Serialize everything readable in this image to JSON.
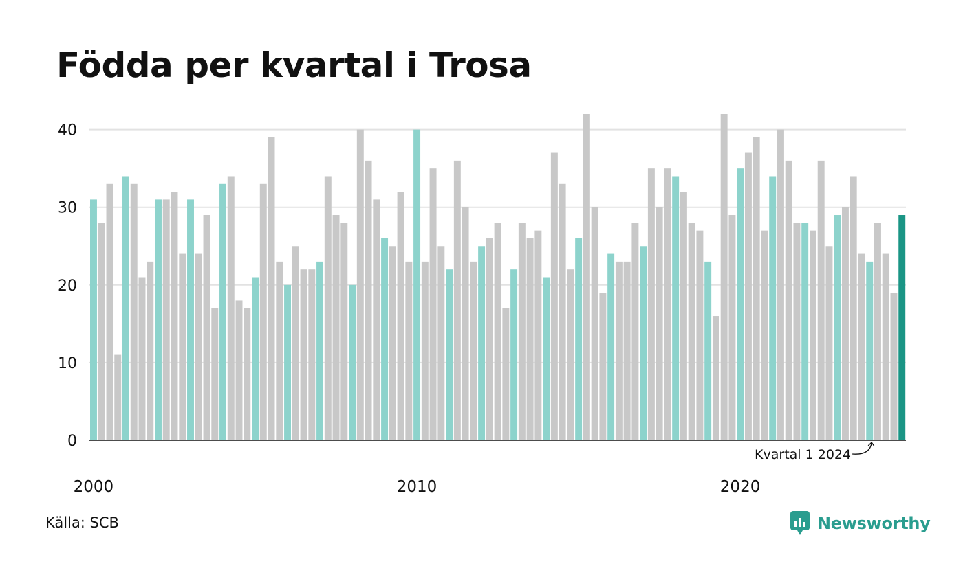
{
  "title": "Födda per kvartal i Trosa",
  "source": "Källa: SCB",
  "brand": "Newsworthy",
  "colors": {
    "bar_default": "#c8c8c8",
    "bar_q1": "#8dd3cc",
    "bar_latest": "#1a9585",
    "grid": "#e2e2e2",
    "axis": "#111111",
    "brand": "#2a9d8f"
  },
  "chart_data": {
    "type": "bar",
    "title": "Födda per kvartal i Trosa",
    "xlabel": "",
    "ylabel": "",
    "ylim": [
      0,
      42
    ],
    "yticks": [
      0,
      10,
      20,
      30,
      40
    ],
    "xticks": [
      "2000",
      "2010",
      "2020"
    ],
    "grid": true,
    "start_year": 2000,
    "values": [
      31,
      28,
      33,
      11,
      34,
      33,
      21,
      23,
      31,
      31,
      32,
      24,
      31,
      24,
      29,
      17,
      33,
      34,
      18,
      17,
      21,
      33,
      39,
      23,
      20,
      25,
      22,
      22,
      23,
      34,
      29,
      28,
      20,
      40,
      36,
      31,
      26,
      25,
      32,
      23,
      40,
      23,
      35,
      25,
      22,
      36,
      30,
      23,
      25,
      26,
      28,
      17,
      22,
      28,
      26,
      27,
      21,
      37,
      33,
      22,
      26,
      42,
      30,
      19,
      24,
      23,
      23,
      28,
      25,
      35,
      30,
      35,
      34,
      32,
      28,
      27,
      23,
      16,
      42,
      29,
      35,
      37,
      39,
      27,
      34,
      40,
      36,
      28,
      28,
      27,
      36,
      25,
      29,
      30,
      34,
      24,
      23,
      28,
      24,
      19,
      29
    ],
    "annotation": "Kvartal 1 2024"
  }
}
